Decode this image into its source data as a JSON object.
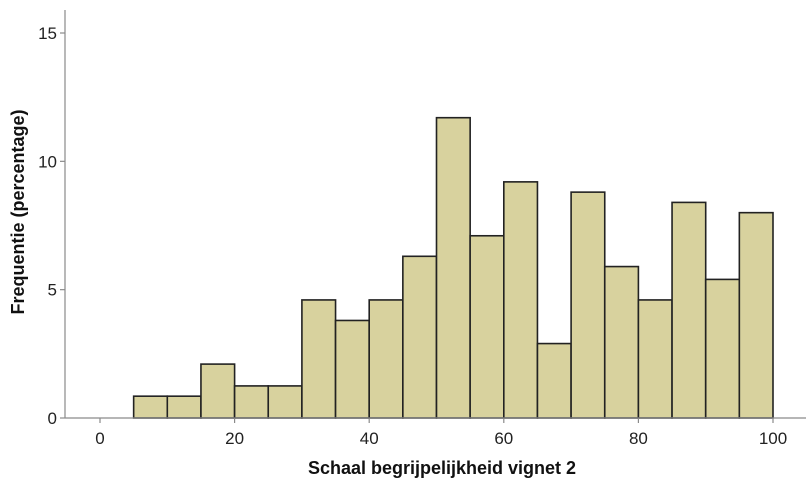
{
  "chart_data": {
    "type": "bar",
    "title": "",
    "xlabel": "Schaal begrijpelijkheid vignet 2",
    "ylabel": "Frequentie (percentage)",
    "xlim": [
      -5,
      102
    ],
    "ylim": [
      0,
      16
    ],
    "xticks": [
      "0",
      "20",
      "40",
      "60",
      "80",
      "100"
    ],
    "yticks": [
      "0",
      "5",
      "10",
      "15"
    ],
    "grid": false,
    "bin_width": 5,
    "bins": [
      {
        "start": 5,
        "end": 10,
        "value": 0.85
      },
      {
        "start": 10,
        "end": 15,
        "value": 0.85
      },
      {
        "start": 15,
        "end": 20,
        "value": 2.1
      },
      {
        "start": 20,
        "end": 25,
        "value": 1.25
      },
      {
        "start": 25,
        "end": 30,
        "value": 1.25
      },
      {
        "start": 30,
        "end": 35,
        "value": 4.6
      },
      {
        "start": 35,
        "end": 40,
        "value": 3.8
      },
      {
        "start": 40,
        "end": 45,
        "value": 4.6
      },
      {
        "start": 45,
        "end": 50,
        "value": 6.3
      },
      {
        "start": 50,
        "end": 55,
        "value": 11.7
      },
      {
        "start": 55,
        "end": 60,
        "value": 7.1
      },
      {
        "start": 60,
        "end": 65,
        "value": 9.2
      },
      {
        "start": 65,
        "end": 70,
        "value": 2.9
      },
      {
        "start": 70,
        "end": 75,
        "value": 8.8
      },
      {
        "start": 75,
        "end": 80,
        "value": 5.9
      },
      {
        "start": 80,
        "end": 85,
        "value": 4.6
      },
      {
        "start": 85,
        "end": 90,
        "value": 8.4
      },
      {
        "start": 90,
        "end": 95,
        "value": 5.4
      },
      {
        "start": 95,
        "end": 100,
        "value": 8.0
      }
    ],
    "colors": {
      "bar_fill": "#d8d29e",
      "bar_stroke": "#222222",
      "axis": "#8a8a8a"
    }
  }
}
